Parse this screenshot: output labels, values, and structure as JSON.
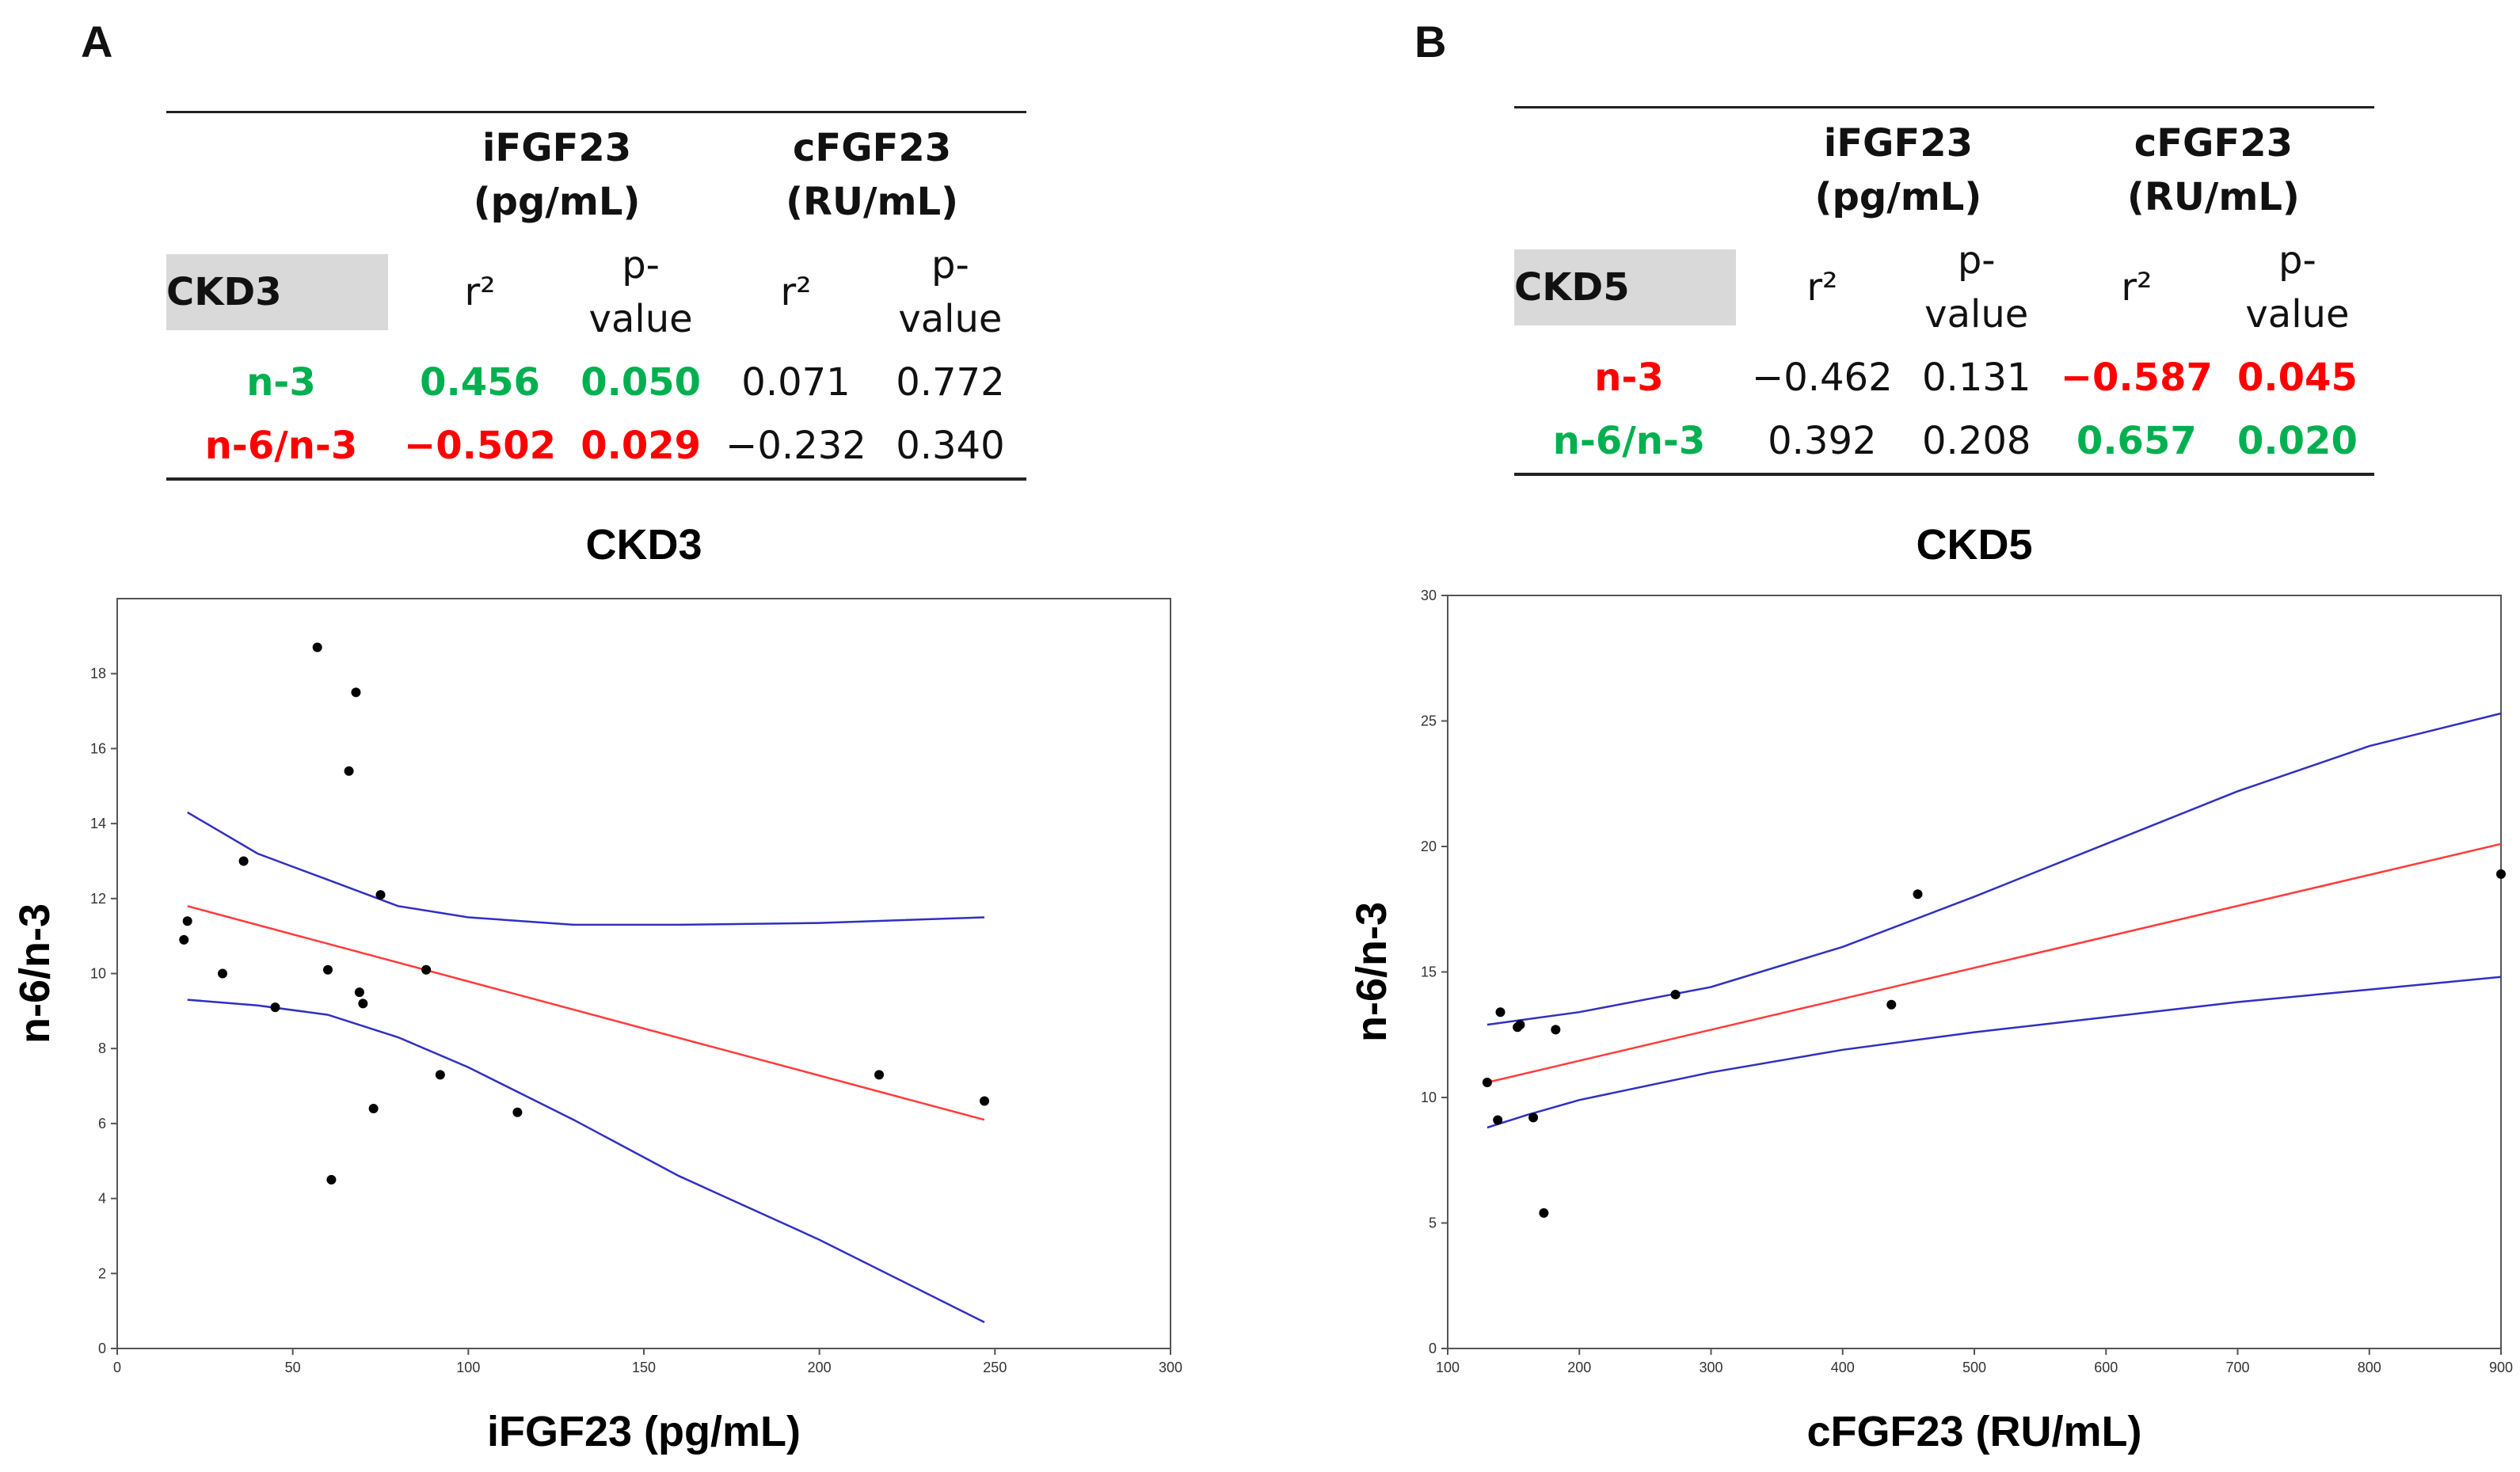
{
  "panels": {
    "A": {
      "letter": "A",
      "table": {
        "col1_line1": "iFGF23",
        "col1_line2": "(pg/mL)",
        "col2_line1": "cFGF23",
        "col2_line2": "(RU/mL)",
        "group": "CKD3",
        "r2": "r²",
        "p": "p-value",
        "rows": [
          {
            "label": "n-3",
            "label_color": "green",
            "cells": [
              {
                "v": "0.456",
                "c": "green"
              },
              {
                "v": "0.050",
                "c": "green"
              },
              {
                "v": "0.071",
                "c": ""
              },
              {
                "v": "0.772",
                "c": ""
              }
            ]
          },
          {
            "label": "n-6/n-3",
            "label_color": "red",
            "cells": [
              {
                "v": "−0.502",
                "c": "red"
              },
              {
                "v": "0.029",
                "c": "red"
              },
              {
                "v": "−0.232",
                "c": ""
              },
              {
                "v": "0.340",
                "c": ""
              }
            ]
          }
        ]
      }
    },
    "B": {
      "letter": "B",
      "table": {
        "col1_line1": "iFGF23",
        "col1_line2": "(pg/mL)",
        "col2_line1": "cFGF23",
        "col2_line2": "(RU/mL)",
        "group": "CKD5",
        "r2": "r²",
        "p": "p-value",
        "rows": [
          {
            "label": "n-3",
            "label_color": "red",
            "cells": [
              {
                "v": "−0.462",
                "c": ""
              },
              {
                "v": "0.131",
                "c": ""
              },
              {
                "v": "−0.587",
                "c": "red"
              },
              {
                "v": "0.045",
                "c": "red"
              }
            ]
          },
          {
            "label": "n-6/n-3",
            "label_color": "green",
            "cells": [
              {
                "v": "0.392",
                "c": ""
              },
              {
                "v": "0.208",
                "c": ""
              },
              {
                "v": "0.657",
                "c": "green"
              },
              {
                "v": "0.020",
                "c": "green"
              }
            ]
          }
        ]
      }
    }
  },
  "colors": {
    "green": "#00b050",
    "red": "#ff0000",
    "fit_line": "#ff3b3b",
    "ci_line": "#3030c0",
    "point": "#000000"
  },
  "chart_data": [
    {
      "type": "scatter",
      "title": "CKD3",
      "xlabel": "iFGF23 (pg/mL)",
      "ylabel": "n-6/n-3",
      "xlim": [
        0,
        300
      ],
      "ylim": [
        0,
        20
      ],
      "xticks": [
        0,
        50,
        100,
        150,
        200,
        250,
        300
      ],
      "yticks": [
        0,
        2,
        4,
        6,
        8,
        10,
        12,
        14,
        16,
        18
      ],
      "points": [
        [
          19,
          10.9
        ],
        [
          20,
          11.4
        ],
        [
          30,
          10.0
        ],
        [
          36,
          13.0
        ],
        [
          45,
          9.1
        ],
        [
          57,
          18.7
        ],
        [
          60,
          10.1
        ],
        [
          61,
          4.5
        ],
        [
          66,
          15.4
        ],
        [
          68,
          17.5
        ],
        [
          69,
          9.5
        ],
        [
          70,
          9.2
        ],
        [
          73,
          6.4
        ],
        [
          75,
          12.1
        ],
        [
          88,
          10.1
        ],
        [
          92,
          7.3
        ],
        [
          114,
          6.3
        ],
        [
          217,
          7.3
        ],
        [
          247,
          6.6
        ]
      ],
      "fit_line": [
        [
          20,
          11.8
        ],
        [
          247,
          6.1
        ]
      ],
      "ci_upper": [
        [
          20,
          14.3
        ],
        [
          40,
          13.2
        ],
        [
          60,
          12.5
        ],
        [
          80,
          11.8
        ],
        [
          100,
          11.5
        ],
        [
          130,
          11.3
        ],
        [
          160,
          11.3
        ],
        [
          200,
          11.35
        ],
        [
          247,
          11.5
        ]
      ],
      "ci_lower": [
        [
          20,
          9.3
        ],
        [
          40,
          9.15
        ],
        [
          60,
          8.9
        ],
        [
          80,
          8.3
        ],
        [
          100,
          7.5
        ],
        [
          130,
          6.1
        ],
        [
          160,
          4.6
        ],
        [
          200,
          2.9
        ],
        [
          247,
          0.7
        ]
      ]
    },
    {
      "type": "scatter",
      "title": "CKD5",
      "xlabel": "cFGF23 (RU/mL)",
      "ylabel": "n-6/n-3",
      "xlim": [
        100,
        900
      ],
      "ylim": [
        0,
        30
      ],
      "xticks": [
        100,
        200,
        300,
        400,
        500,
        600,
        700,
        800,
        900
      ],
      "yticks": [
        0,
        5,
        10,
        15,
        20,
        25,
        30
      ],
      "points": [
        [
          130,
          10.6
        ],
        [
          138,
          9.1
        ],
        [
          140,
          13.4
        ],
        [
          153,
          12.8
        ],
        [
          155,
          12.9
        ],
        [
          165,
          9.2
        ],
        [
          173,
          5.4
        ],
        [
          182,
          12.7
        ],
        [
          273,
          14.1
        ],
        [
          437,
          13.7
        ],
        [
          457,
          18.1
        ],
        [
          900,
          18.9
        ]
      ],
      "fit_line": [
        [
          130,
          10.6
        ],
        [
          900,
          20.1
        ]
      ],
      "ci_upper": [
        [
          130,
          12.9
        ],
        [
          200,
          13.4
        ],
        [
          300,
          14.4
        ],
        [
          400,
          16.0
        ],
        [
          500,
          18.0
        ],
        [
          600,
          20.1
        ],
        [
          700,
          22.2
        ],
        [
          800,
          24.0
        ],
        [
          900,
          25.3
        ]
      ],
      "ci_lower": [
        [
          130,
          8.8
        ],
        [
          160,
          9.3
        ],
        [
          200,
          9.9
        ],
        [
          300,
          11.0
        ],
        [
          400,
          11.9
        ],
        [
          500,
          12.6
        ],
        [
          600,
          13.2
        ],
        [
          700,
          13.8
        ],
        [
          800,
          14.3
        ],
        [
          900,
          14.8
        ]
      ]
    }
  ]
}
